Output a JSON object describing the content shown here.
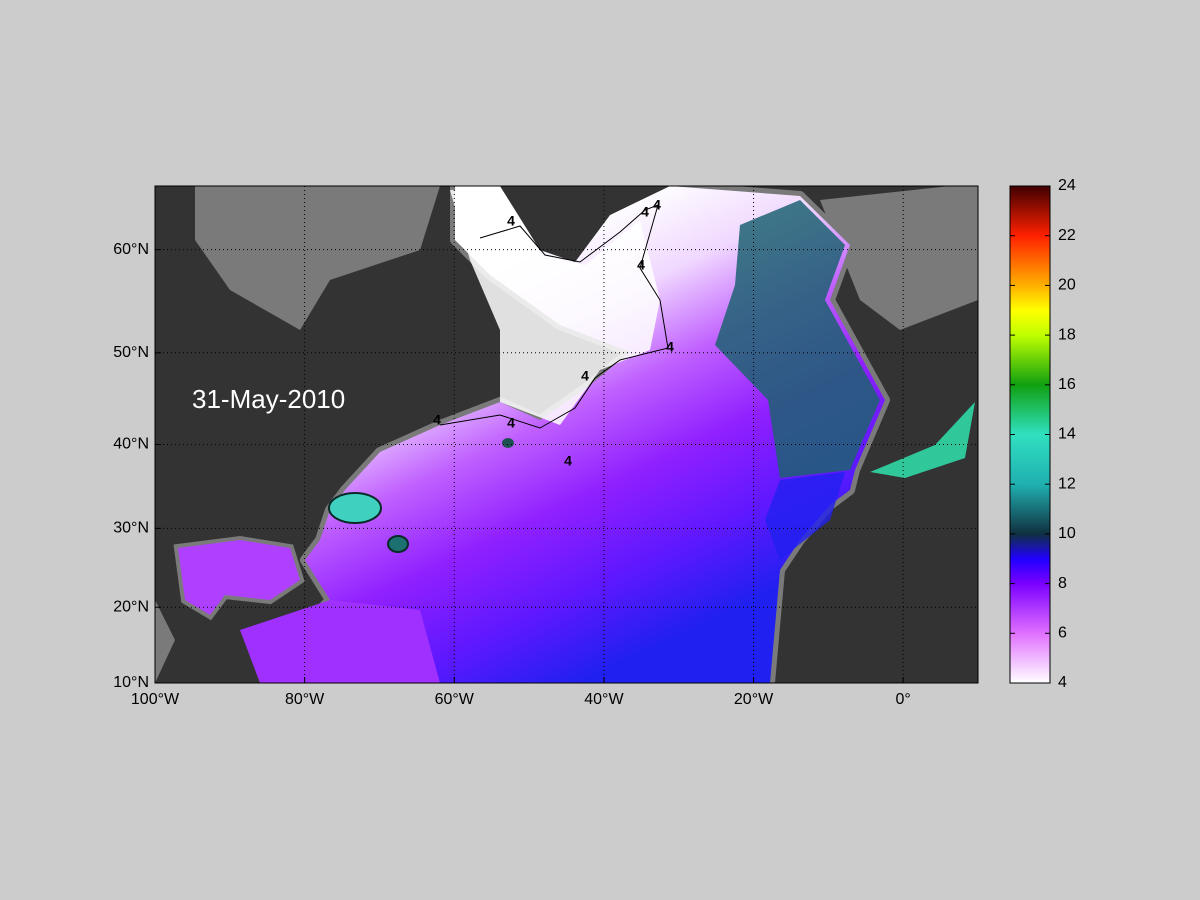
{
  "map": {
    "date_label": "31-May-2010",
    "xlim": [
      -100,
      10
    ],
    "ylim": [
      10,
      65.5
    ],
    "lat_ticks": [
      {
        "value": 10,
        "label": "10°N"
      },
      {
        "value": 20,
        "label": "20°N"
      },
      {
        "value": 30,
        "label": "30°N"
      },
      {
        "value": 40,
        "label": "40°N"
      },
      {
        "value": 50,
        "label": "50°N"
      },
      {
        "value": 60,
        "label": "60°N"
      }
    ],
    "lon_ticks": [
      {
        "value": -100,
        "label": "100°W"
      },
      {
        "value": -80,
        "label": "80°W"
      },
      {
        "value": -60,
        "label": "60°W"
      },
      {
        "value": -40,
        "label": "40°W"
      },
      {
        "value": -20,
        "label": "20°W"
      },
      {
        "value": 0,
        "label": "0°"
      }
    ],
    "contour_labels": [
      "4",
      "4",
      "4",
      "4",
      "4",
      "4",
      "4",
      "4",
      "4"
    ],
    "grid": true,
    "colorbar": {
      "lim": [
        4,
        24
      ],
      "ticks": [
        4,
        6,
        8,
        10,
        12,
        14,
        16,
        18,
        20,
        22,
        24
      ]
    }
  }
}
